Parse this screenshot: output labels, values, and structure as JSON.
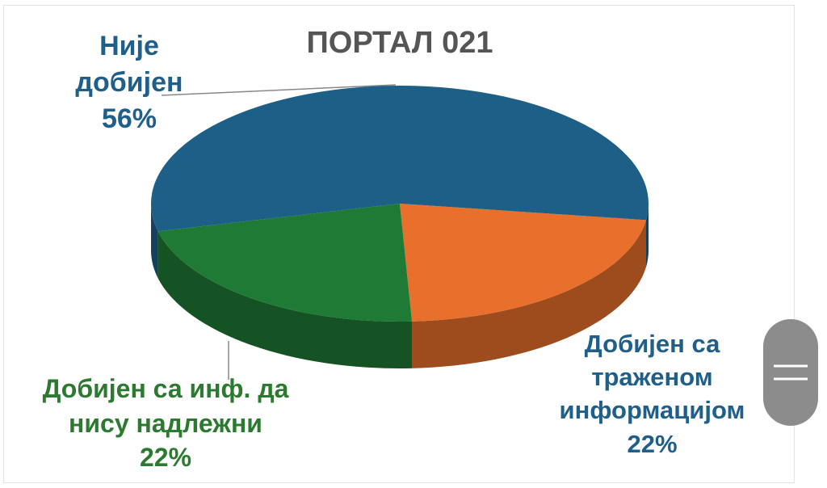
{
  "chart_data": {
    "type": "pie",
    "title": "ПОРТАЛ 021",
    "categories": [
      "Није добијен",
      "Добијен са траженом информацијом",
      "Добијен са инф. да нису надлежни"
    ],
    "values": [
      56,
      22,
      22
    ],
    "value_labels": [
      "56%",
      "22%",
      "22%"
    ],
    "colors": [
      "#1d5f86",
      "#e8702c",
      "#1f7a36"
    ]
  }
}
